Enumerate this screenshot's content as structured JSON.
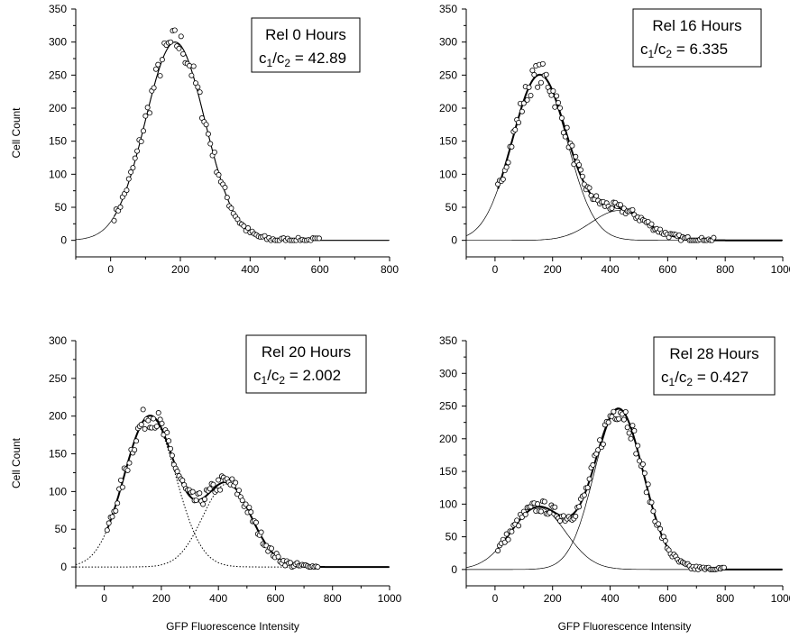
{
  "chart_data": [
    {
      "type": "scatter",
      "xlabel": "",
      "ylabel": "Cell Count",
      "xlim": [
        -100,
        800
      ],
      "ylim": [
        -25,
        350
      ],
      "xticks": [
        0,
        200,
        400,
        600,
        800
      ],
      "yticks": [
        0,
        50,
        100,
        150,
        200,
        250,
        300,
        350
      ],
      "annotation": {
        "title": "Rel 0 Hours",
        "ratio_label": "c",
        "ratio_value": "42.89"
      },
      "components": [
        {
          "style": "solid",
          "amplitude": 300,
          "mean": 185,
          "sd": 85
        }
      ],
      "total_curve": "thin",
      "scatter": {
        "x_start": 10,
        "x_end": 600,
        "step": 6
      }
    },
    {
      "type": "scatter",
      "xlabel": "",
      "ylabel": "",
      "xlim": [
        -100,
        1000
      ],
      "ylim": [
        -25,
        350
      ],
      "xticks": [
        0,
        200,
        400,
        600,
        800,
        1000
      ],
      "yticks": [
        0,
        50,
        100,
        150,
        200,
        250,
        300,
        350
      ],
      "annotation": {
        "title": "Rel 16 Hours",
        "ratio_label": "c",
        "ratio_value": "6.335"
      },
      "components": [
        {
          "style": "solid",
          "amplitude": 250,
          "mean": 155,
          "sd": 95
        },
        {
          "style": "solid",
          "amplitude": 45,
          "mean": 430,
          "sd": 95
        }
      ],
      "total_curve": "thick",
      "scatter": {
        "x_start": 10,
        "x_end": 760,
        "step": 6
      }
    },
    {
      "type": "scatter",
      "xlabel": "GFP Fluorescence Intensity",
      "ylabel": "Cell Count",
      "xlim": [
        -100,
        1000
      ],
      "ylim": [
        -25,
        300
      ],
      "xticks": [
        0,
        200,
        400,
        600,
        800,
        1000
      ],
      "yticks": [
        0,
        50,
        100,
        150,
        200,
        250,
        300
      ],
      "annotation": {
        "title": "Rel 20 Hours",
        "ratio_label": "c",
        "ratio_value": "2.002"
      },
      "components": [
        {
          "style": "dotted",
          "amplitude": 200,
          "mean": 160,
          "sd": 90
        },
        {
          "style": "dotted",
          "amplitude": 110,
          "mean": 430,
          "sd": 85
        }
      ],
      "total_curve": "thick",
      "scatter": {
        "x_start": 10,
        "x_end": 750,
        "step": 6
      }
    },
    {
      "type": "scatter",
      "xlabel": "GFP Fluorescence Intensity",
      "ylabel": "",
      "xlim": [
        -100,
        1000
      ],
      "ylim": [
        -25,
        350
      ],
      "xticks": [
        0,
        200,
        400,
        600,
        800,
        1000
      ],
      "yticks": [
        0,
        50,
        100,
        150,
        200,
        250,
        300,
        350
      ],
      "annotation": {
        "title": "Rel 28 Hours",
        "ratio_label": "c",
        "ratio_value": "0.427"
      },
      "components": [
        {
          "style": "solid",
          "amplitude": 95,
          "mean": 150,
          "sd": 95
        },
        {
          "style": "solid",
          "amplitude": 245,
          "mean": 430,
          "sd": 85
        }
      ],
      "total_curve": "thick",
      "scatter": {
        "x_start": 10,
        "x_end": 800,
        "step": 6
      }
    }
  ]
}
